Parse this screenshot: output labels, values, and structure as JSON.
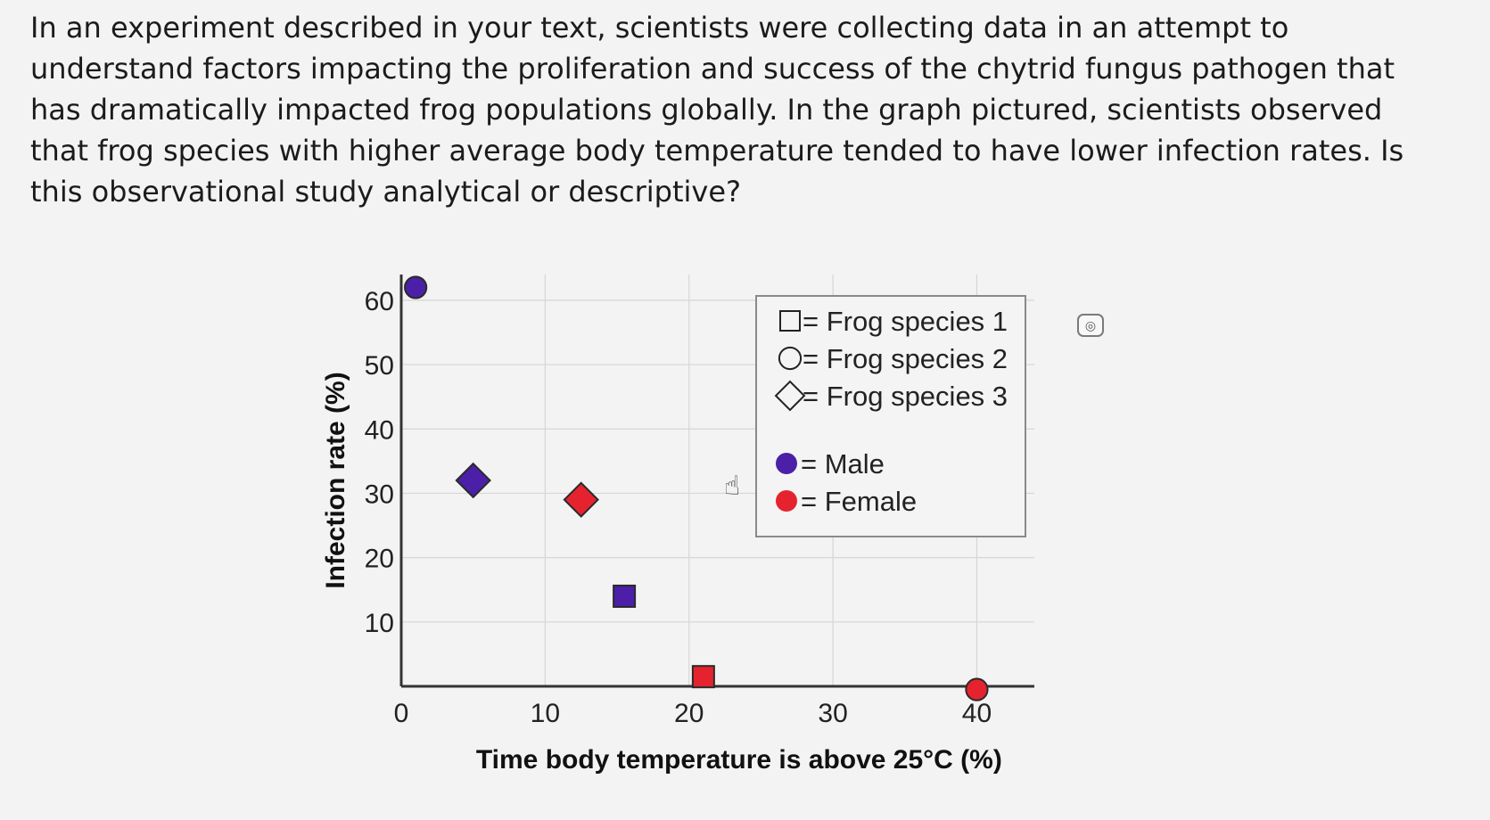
{
  "question": "In an experiment described in your text, scientists were collecting data in an attempt to understand factors impacting the proliferation and success of the chytrid fungus pathogen that has dramatically impacted frog populations globally. In the graph pictured, scientists observed that frog species with higher average body temperature tended to have lower infection rates. Is this observational study analytical or descriptive?",
  "chart_data": {
    "type": "scatter",
    "xlabel": "Time body temperature is above 25°C (%)",
    "ylabel": "Infection rate (%)",
    "xlim": [
      0,
      44
    ],
    "ylim": [
      0,
      64
    ],
    "x_ticks": [
      "0",
      "10",
      "20",
      "30",
      "40"
    ],
    "y_ticks": [
      "10",
      "20",
      "30",
      "40",
      "50",
      "60"
    ],
    "grid": true,
    "legend_position": "top-right",
    "legend": {
      "shapes": [
        {
          "shape": "square",
          "label": "= Frog species 1"
        },
        {
          "shape": "circle",
          "label": "= Frog species 2"
        },
        {
          "shape": "diamond",
          "label": "= Frog species 3"
        }
      ],
      "colors": [
        {
          "color": "#4b1fa8",
          "label": "= Male"
        },
        {
          "color": "#e5232e",
          "label": "= Female"
        }
      ]
    },
    "points": [
      {
        "species": "Frog species 2",
        "shape": "circle",
        "sex": "Male",
        "x": 1,
        "y": 62
      },
      {
        "species": "Frog species 3",
        "shape": "diamond",
        "sex": "Male",
        "x": 5,
        "y": 32
      },
      {
        "species": "Frog species 3",
        "shape": "diamond",
        "sex": "Female",
        "x": 12.5,
        "y": 29
      },
      {
        "species": "Frog species 1",
        "shape": "square",
        "sex": "Male",
        "x": 15.5,
        "y": 14
      },
      {
        "species": "Frog species 1",
        "shape": "square",
        "sex": "Female",
        "x": 21,
        "y": 1.5
      },
      {
        "species": "Frog species 2",
        "shape": "circle",
        "sex": "Female",
        "x": 40,
        "y": -0.5
      }
    ]
  },
  "colors": {
    "male": "#4b1fa8",
    "female": "#e5232e",
    "marker_stroke": "#2a2a2a",
    "grid": "#d6d6d6"
  },
  "icons": {
    "scan": "scan-icon",
    "cursor": "hand-cursor-icon"
  }
}
